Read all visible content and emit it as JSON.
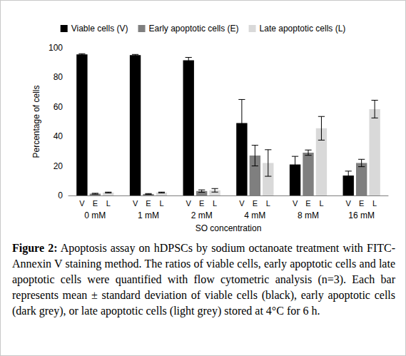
{
  "chart_data": {
    "type": "bar",
    "categories": [
      "0 mM",
      "1 mM",
      "2 mM",
      "4 mM",
      "8 mM",
      "16 mM"
    ],
    "xlabel": "SO concentration",
    "ylabel": "Percentage of cells",
    "ylim": [
      0,
      100
    ],
    "yticks": [
      0,
      20,
      40,
      60,
      80,
      100
    ],
    "grid": false,
    "legend": "top",
    "caption_label": "Figure 2:",
    "caption": "Apoptosis assay on hDPSCs by sodium octanoate treatment with FITC-Annexin V staining method. The ratios of viable cells, early apoptotic cells and late apoptotic cells were quantified with flow cytometric analysis (n=3). Each bar represents mean ± standard deviation of viable cells (black), early apoptotic cells (dark grey), or late apoptotic cells (light grey) stored at 4°C for 6 h.",
    "series": [
      {
        "name": "Viable cells (V)",
        "short_label": "V",
        "color": "#000000",
        "values": [
          95.5,
          95,
          91.5,
          49,
          21,
          13.5
        ],
        "errors": [
          0.5,
          0.5,
          2,
          16,
          5.5,
          3
        ]
      },
      {
        "name": "Early apoptotic cells (E)",
        "short_label": "E",
        "color": "#7f7f7f",
        "values": [
          1.2,
          1.0,
          3.0,
          27,
          29,
          22
        ],
        "errors": [
          0.3,
          0.3,
          0.8,
          7,
          1.8,
          2.5
        ]
      },
      {
        "name": "Late apoptotic cells (L)",
        "short_label": "L",
        "color": "#d9d9d9",
        "values": [
          2.0,
          2.0,
          3.5,
          22,
          45.5,
          58.5
        ],
        "errors": [
          0.3,
          0.3,
          1.2,
          9,
          8,
          6
        ]
      }
    ]
  }
}
